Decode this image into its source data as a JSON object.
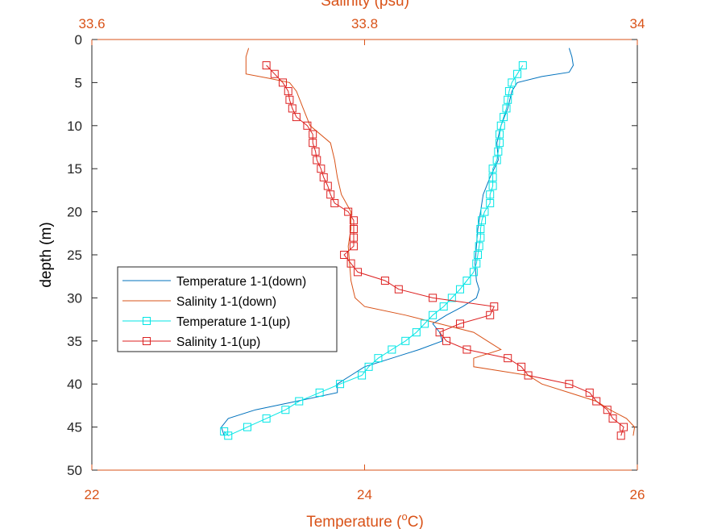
{
  "chart_data": {
    "type": "line",
    "xlabel_bottom": "Temperature (",
    "xlabel_bottom_sup": "o",
    "xlabel_bottom_unit": "C)",
    "xlabel_top": "Salinity (psu)",
    "ylabel": "depth (m)",
    "y_reversed": true,
    "ylim": [
      0,
      50
    ],
    "yticks": [
      0,
      5,
      10,
      15,
      20,
      25,
      30,
      35,
      40,
      45,
      50
    ],
    "x_bottom_lim": [
      22,
      26
    ],
    "x_bottom_ticks": [
      22,
      24,
      26
    ],
    "x_top_lim": [
      33.6,
      34
    ],
    "x_top_ticks": [
      "33.6",
      "33.8",
      "34"
    ],
    "grid": false,
    "legend_position": "middle-left",
    "colors": {
      "axis": "#d95319",
      "left_axis": "#262626",
      "temp_down": "#0072bd",
      "sal_down": "#d95319",
      "temp_up": "#00e5e5",
      "sal_up": "#dd2020"
    },
    "series": [
      {
        "name": "Temperature 1-1(down)",
        "axis": "bottom",
        "marker": "none",
        "points": [
          [
            25.5,
            1
          ],
          [
            25.52,
            2
          ],
          [
            25.53,
            3
          ],
          [
            25.5,
            3.8
          ],
          [
            25.3,
            4.3
          ],
          [
            25.12,
            5
          ],
          [
            25.08,
            6
          ],
          [
            25.05,
            8
          ],
          [
            25.0,
            10
          ],
          [
            24.97,
            12
          ],
          [
            24.98,
            14
          ],
          [
            24.92,
            16
          ],
          [
            24.87,
            18
          ],
          [
            24.85,
            20
          ],
          [
            24.83,
            22
          ],
          [
            24.82,
            24
          ],
          [
            24.81,
            26
          ],
          [
            24.82,
            28
          ],
          [
            24.84,
            29
          ],
          [
            24.82,
            30
          ],
          [
            24.72,
            31
          ],
          [
            24.6,
            32
          ],
          [
            24.5,
            33
          ],
          [
            24.55,
            34
          ],
          [
            24.57,
            35
          ],
          [
            24.4,
            36
          ],
          [
            24.2,
            37
          ],
          [
            24.0,
            38
          ],
          [
            23.9,
            39
          ],
          [
            23.8,
            40
          ],
          [
            23.8,
            41
          ],
          [
            23.5,
            42
          ],
          [
            23.2,
            43
          ],
          [
            23.0,
            44
          ],
          [
            22.95,
            45
          ],
          [
            22.97,
            46
          ]
        ]
      },
      {
        "name": "Salinity 1-1(down)",
        "axis": "top",
        "marker": "none",
        "points": [
          [
            33.715,
            1
          ],
          [
            33.713,
            2
          ],
          [
            33.713,
            4
          ],
          [
            33.73,
            4.5
          ],
          [
            33.745,
            5
          ],
          [
            33.75,
            6
          ],
          [
            33.755,
            8
          ],
          [
            33.76,
            10
          ],
          [
            33.775,
            12
          ],
          [
            33.778,
            14
          ],
          [
            33.78,
            16
          ],
          [
            33.783,
            18
          ],
          [
            33.79,
            20
          ],
          [
            33.79,
            22
          ],
          [
            33.788,
            24
          ],
          [
            33.789,
            26
          ],
          [
            33.79,
            28
          ],
          [
            33.793,
            30
          ],
          [
            33.8,
            31
          ],
          [
            33.83,
            32
          ],
          [
            33.88,
            34
          ],
          [
            33.89,
            35
          ],
          [
            33.9,
            36
          ],
          [
            33.88,
            37
          ],
          [
            33.88,
            38
          ],
          [
            33.92,
            39
          ],
          [
            33.93,
            40
          ],
          [
            33.95,
            41
          ],
          [
            33.97,
            42
          ],
          [
            33.98,
            43
          ],
          [
            33.992,
            44
          ],
          [
            33.998,
            45
          ],
          [
            33.997,
            46
          ]
        ]
      },
      {
        "name": "Temperature 1-1(up)",
        "axis": "bottom",
        "marker": "square",
        "points": [
          [
            25.16,
            3
          ],
          [
            25.12,
            4
          ],
          [
            25.08,
            5
          ],
          [
            25.06,
            6
          ],
          [
            25.05,
            7
          ],
          [
            25.04,
            8
          ],
          [
            25.02,
            9
          ],
          [
            25.0,
            10
          ],
          [
            24.99,
            11
          ],
          [
            24.99,
            12
          ],
          [
            24.98,
            13
          ],
          [
            24.97,
            14
          ],
          [
            24.94,
            15
          ],
          [
            24.94,
            16
          ],
          [
            24.94,
            17
          ],
          [
            24.92,
            18
          ],
          [
            24.92,
            19
          ],
          [
            24.88,
            20
          ],
          [
            24.86,
            21
          ],
          [
            24.85,
            22
          ],
          [
            24.85,
            23
          ],
          [
            24.84,
            24
          ],
          [
            24.83,
            25
          ],
          [
            24.82,
            26
          ],
          [
            24.8,
            27
          ],
          [
            24.75,
            28
          ],
          [
            24.7,
            29
          ],
          [
            24.64,
            30
          ],
          [
            24.58,
            31
          ],
          [
            24.5,
            32
          ],
          [
            24.44,
            33
          ],
          [
            24.38,
            34
          ],
          [
            24.3,
            35
          ],
          [
            24.2,
            36
          ],
          [
            24.1,
            37
          ],
          [
            24.03,
            38
          ],
          [
            23.98,
            39
          ],
          [
            23.82,
            40
          ],
          [
            23.67,
            41
          ],
          [
            23.52,
            42
          ],
          [
            23.42,
            43
          ],
          [
            23.28,
            44
          ],
          [
            23.14,
            45
          ],
          [
            23.0,
            46
          ],
          [
            22.97,
            45.5
          ]
        ]
      },
      {
        "name": "Salinity 1-1(up)",
        "axis": "top",
        "marker": "square",
        "points": [
          [
            33.728,
            3
          ],
          [
            33.734,
            4
          ],
          [
            33.74,
            5
          ],
          [
            33.744,
            6
          ],
          [
            33.745,
            7
          ],
          [
            33.747,
            8
          ],
          [
            33.75,
            9
          ],
          [
            33.758,
            10
          ],
          [
            33.762,
            11
          ],
          [
            33.762,
            12
          ],
          [
            33.764,
            13
          ],
          [
            33.765,
            14
          ],
          [
            33.768,
            15
          ],
          [
            33.77,
            16
          ],
          [
            33.773,
            17
          ],
          [
            33.775,
            18
          ],
          [
            33.778,
            19
          ],
          [
            33.788,
            20
          ],
          [
            33.792,
            21
          ],
          [
            33.792,
            22
          ],
          [
            33.792,
            23
          ],
          [
            33.792,
            24
          ],
          [
            33.785,
            25
          ],
          [
            33.79,
            26
          ],
          [
            33.795,
            27
          ],
          [
            33.815,
            28
          ],
          [
            33.825,
            29
          ],
          [
            33.85,
            30
          ],
          [
            33.895,
            31
          ],
          [
            33.892,
            32
          ],
          [
            33.87,
            33
          ],
          [
            33.855,
            34
          ],
          [
            33.86,
            35
          ],
          [
            33.875,
            36
          ],
          [
            33.905,
            37
          ],
          [
            33.915,
            38
          ],
          [
            33.92,
            39
          ],
          [
            33.95,
            40
          ],
          [
            33.965,
            41
          ],
          [
            33.97,
            42
          ],
          [
            33.978,
            43
          ],
          [
            33.982,
            44
          ],
          [
            33.99,
            45
          ],
          [
            33.988,
            46
          ]
        ]
      }
    ]
  }
}
